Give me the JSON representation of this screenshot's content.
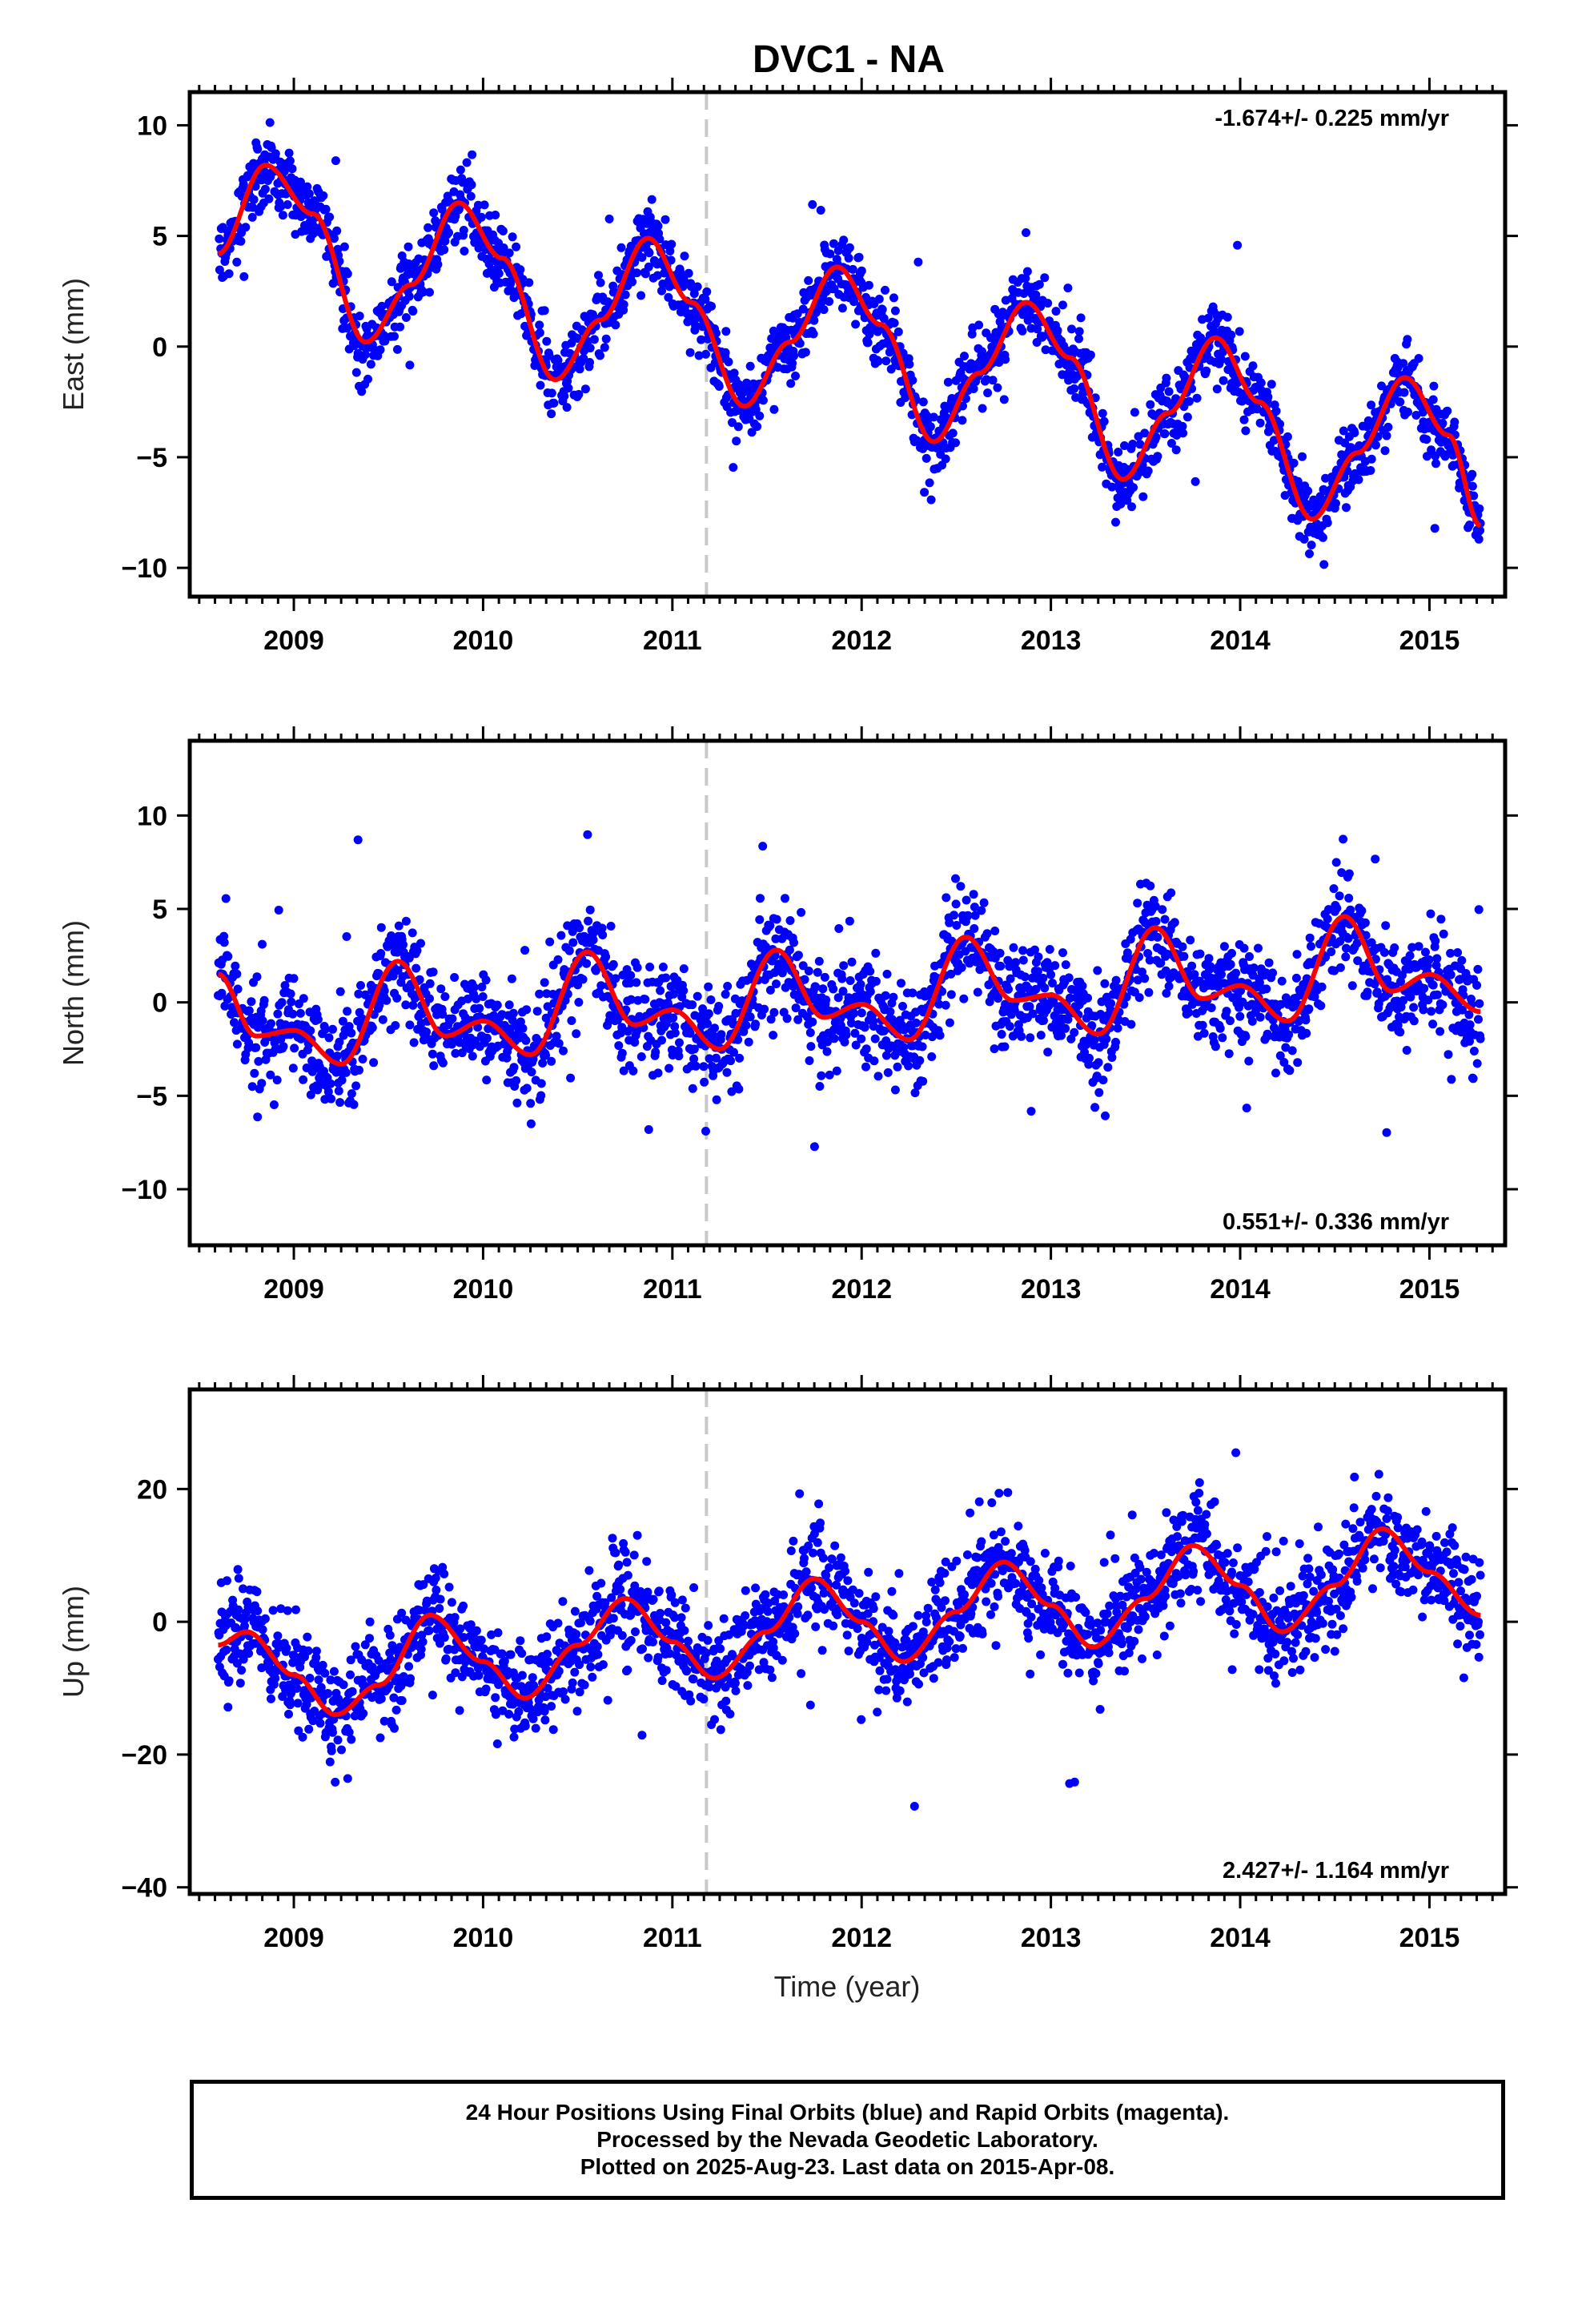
{
  "title": "DVC1 - NA",
  "footer": {
    "line1": "24 Hour Positions Using Final Orbits (blue) and Rapid Orbits (magenta).",
    "line2": "Processed by the Nevada Geodetic Laboratory.",
    "line3": "Plotted on 2025-Aug-23. Last data on 2015-Apr-08."
  },
  "colors": {
    "points": "#0000ff",
    "fit": "#ff0000",
    "event_line": "#c8c8c8",
    "frame": "#000000"
  },
  "chart_data": [
    {
      "type": "scatter",
      "ylabel": "East (mm)",
      "xlabel": "",
      "rate_label": "-1.674+/- 0.225 mm/yr",
      "rate_position": "top-right",
      "xlim": [
        2008.45,
        2015.4
      ],
      "ylim": [
        -11.3,
        11.5
      ],
      "x_ticks": [
        2009,
        2010,
        2011,
        2012,
        2013,
        2014,
        2015
      ],
      "y_ticks": [
        -10,
        -5,
        0,
        5,
        10
      ],
      "y_tick_labels": [
        "−10",
        "−5",
        "0",
        "5",
        "10"
      ],
      "data_range": [
        2008.6,
        2015.27
      ],
      "event_line_x": 2011.18,
      "series": [
        {
          "kind": "points",
          "trend_mm_per_yr": -1.674,
          "annual_amp": 4.0,
          "semiannual_amp": 0.3,
          "noise_sd": 1.1,
          "offset": 4.5
        },
        {
          "kind": "fit",
          "fit_points": [
            [
              2008.6,
              4.2
            ],
            [
              2008.85,
              8.2
            ],
            [
              2009.1,
              6.0
            ],
            [
              2009.38,
              0.2
            ],
            [
              2009.62,
              2.8
            ],
            [
              2009.87,
              6.5
            ],
            [
              2010.1,
              4.0
            ],
            [
              2010.38,
              -1.5
            ],
            [
              2010.62,
              1.2
            ],
            [
              2010.87,
              4.9
            ],
            [
              2011.1,
              2.0
            ],
            [
              2011.38,
              -2.7
            ],
            [
              2011.62,
              0.2
            ],
            [
              2011.87,
              3.6
            ],
            [
              2012.1,
              1.0
            ],
            [
              2012.38,
              -4.3
            ],
            [
              2012.62,
              -1.2
            ],
            [
              2012.87,
              2.0
            ],
            [
              2013.1,
              -0.5
            ],
            [
              2013.38,
              -6.0
            ],
            [
              2013.62,
              -3.0
            ],
            [
              2013.87,
              0.4
            ],
            [
              2014.1,
              -2.5
            ],
            [
              2014.38,
              -7.8
            ],
            [
              2014.62,
              -4.8
            ],
            [
              2014.87,
              -1.4
            ],
            [
              2015.1,
              -4.0
            ],
            [
              2015.27,
              -8.1
            ]
          ]
        }
      ]
    },
    {
      "type": "scatter",
      "ylabel": "North (mm)",
      "xlabel": "",
      "rate_label": "0.551+/- 0.336 mm/yr",
      "rate_position": "bottom-right",
      "xlim": [
        2008.45,
        2015.4
      ],
      "ylim": [
        -13.0,
        14.0
      ],
      "x_ticks": [
        2009,
        2010,
        2011,
        2012,
        2013,
        2014,
        2015
      ],
      "y_ticks": [
        -10,
        -5,
        0,
        5,
        10
      ],
      "y_tick_labels": [
        "−10",
        "−5",
        "0",
        "5",
        "10"
      ],
      "data_range": [
        2008.6,
        2015.27
      ],
      "event_line_x": 2011.18,
      "series": [
        {
          "kind": "points",
          "trend_mm_per_yr": 0.551,
          "annual_amp": 1.6,
          "semiannual_amp": 1.3,
          "noise_sd": 1.8,
          "offset": -1.0
        },
        {
          "kind": "fit",
          "fit_points": [
            [
              2008.6,
              1.5
            ],
            [
              2008.8,
              -1.8
            ],
            [
              2009.0,
              -1.5
            ],
            [
              2009.25,
              -3.3
            ],
            [
              2009.55,
              2.2
            ],
            [
              2009.8,
              -1.8
            ],
            [
              2010.0,
              -1.0
            ],
            [
              2010.25,
              -2.8
            ],
            [
              2010.55,
              2.7
            ],
            [
              2010.8,
              -1.2
            ],
            [
              2011.0,
              -0.4
            ],
            [
              2011.25,
              -2.5
            ],
            [
              2011.55,
              2.8
            ],
            [
              2011.8,
              -0.8
            ],
            [
              2012.0,
              -0.1
            ],
            [
              2012.25,
              -2.0
            ],
            [
              2012.55,
              3.5
            ],
            [
              2012.8,
              0.1
            ],
            [
              2013.0,
              0.4
            ],
            [
              2013.25,
              -1.7
            ],
            [
              2013.55,
              4.0
            ],
            [
              2013.8,
              0.2
            ],
            [
              2014.0,
              0.9
            ],
            [
              2014.25,
              -1.0
            ],
            [
              2014.55,
              4.6
            ],
            [
              2014.8,
              0.6
            ],
            [
              2015.0,
              1.5
            ],
            [
              2015.27,
              -0.5
            ]
          ]
        }
      ]
    },
    {
      "type": "scatter",
      "ylabel": "Up (mm)",
      "xlabel": "Time (year)",
      "rate_label": "2.427+/- 1.164 mm/yr",
      "rate_position": "bottom-right",
      "xlim": [
        2008.45,
        2015.4
      ],
      "ylim": [
        -41,
        35
      ],
      "x_ticks": [
        2009,
        2010,
        2011,
        2012,
        2013,
        2014,
        2015
      ],
      "y_ticks": [
        -40,
        -20,
        0,
        20
      ],
      "y_tick_labels": [
        "−40",
        "−20",
        "0",
        "20"
      ],
      "data_range": [
        2008.6,
        2015.27
      ],
      "event_line_x": 2011.18,
      "series": [
        {
          "kind": "points",
          "trend_mm_per_yr": 2.427,
          "annual_amp": 8.5,
          "semiannual_amp": 0.0,
          "noise_sd": 5.0,
          "offset": -6.5
        },
        {
          "kind": "fit",
          "fit_points": [
            [
              2008.6,
              -3.5
            ],
            [
              2008.75,
              -1.5
            ],
            [
              2009.0,
              -8.0
            ],
            [
              2009.22,
              -14.0
            ],
            [
              2009.45,
              -9.5
            ],
            [
              2009.72,
              1.0
            ],
            [
              2010.0,
              -6.0
            ],
            [
              2010.22,
              -11.5
            ],
            [
              2010.5,
              -3.5
            ],
            [
              2010.75,
              3.5
            ],
            [
              2011.0,
              -3.0
            ],
            [
              2011.22,
              -8.5
            ],
            [
              2011.5,
              -1.5
            ],
            [
              2011.75,
              6.5
            ],
            [
              2012.0,
              0.0
            ],
            [
              2012.22,
              -6.0
            ],
            [
              2012.5,
              1.5
            ],
            [
              2012.75,
              9.0
            ],
            [
              2013.0,
              2.5
            ],
            [
              2013.22,
              -3.8
            ],
            [
              2013.5,
              3.5
            ],
            [
              2013.75,
              11.5
            ],
            [
              2014.0,
              5.5
            ],
            [
              2014.22,
              -1.5
            ],
            [
              2014.5,
              5.5
            ],
            [
              2014.75,
              14.0
            ],
            [
              2015.0,
              7.5
            ],
            [
              2015.27,
              1.0
            ]
          ]
        }
      ]
    }
  ]
}
